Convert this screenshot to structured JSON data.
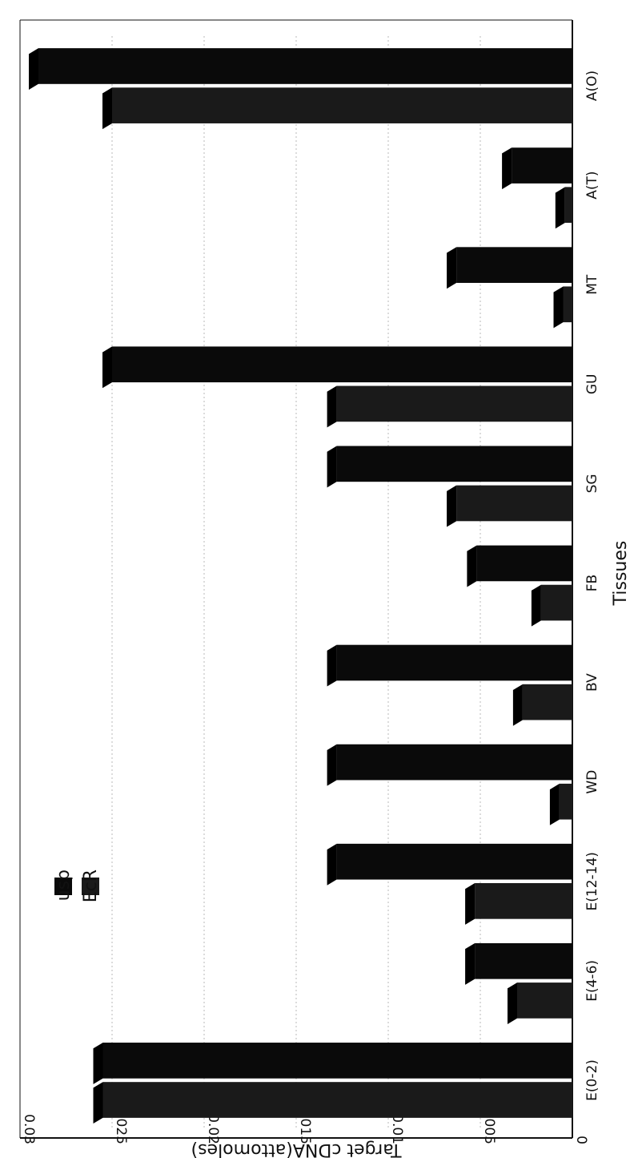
{
  "chart_data": {
    "type": "bar",
    "title": "",
    "xlabel": "Tissues",
    "ylabel": "Target cDNA(attomoles)",
    "ylim": [
      0,
      0.03
    ],
    "yticks": [
      "0",
      "0.005",
      "0.01",
      "0.015",
      "0.02",
      "0.025",
      "0.03"
    ],
    "categories": [
      "E(0-2)",
      "E(4-6)",
      "E(12-14)",
      "WD",
      "BV",
      "FB",
      "SG",
      "GU",
      "MT",
      "A(T)",
      "A(O)"
    ],
    "series": [
      {
        "name": "usp",
        "values": [
          0.0255,
          0.0053,
          0.0128,
          0.0128,
          0.0128,
          0.0052,
          0.0128,
          0.025,
          0.0063,
          0.0033,
          0.029
        ]
      },
      {
        "name": "EcR",
        "values": [
          0.0255,
          0.003,
          0.0053,
          0.0007,
          0.0027,
          0.0017,
          0.0063,
          0.0128,
          0.0005,
          0.0004,
          0.025
        ]
      }
    ],
    "grid": true,
    "legend": "top-left",
    "orientation": "rotated-90",
    "colors": {
      "usp": "#0a0a0a",
      "EcR": "#1a1a1a"
    }
  }
}
